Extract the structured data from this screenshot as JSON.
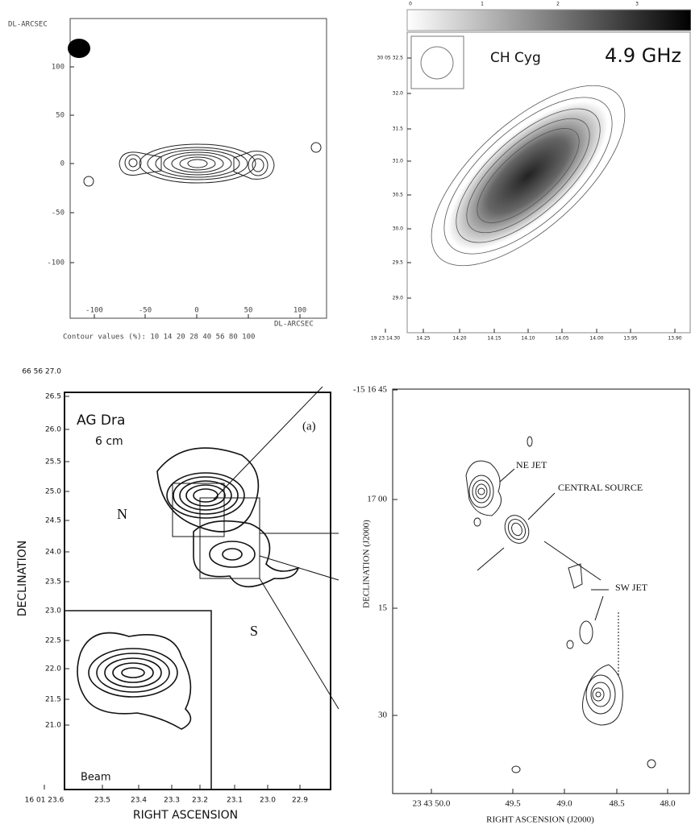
{
  "panels": [
    {
      "corner_label": "DL-ARCSEC",
      "x_axis_label": "DL-ARCSEC",
      "yticks": [
        "100",
        "50",
        "0",
        "-50",
        "-100"
      ],
      "xticks": [
        "-100",
        "-50",
        "0",
        "50",
        "100"
      ],
      "caption": "Contour values (%): 10 14 20 28 40 56 80 100"
    },
    {
      "source": "CH Cyg",
      "frequency": "4.9 GHz",
      "colorbar_ticks": [
        "0",
        "1",
        "2",
        "3"
      ],
      "yticks": [
        "30 05 32.5",
        "32.0",
        "31.5",
        "31.0",
        "30.5",
        "30.0",
        "29.5",
        "29.0"
      ],
      "xticks": [
        "19 23 14.30",
        "14.25",
        "14.20",
        "14.15",
        "14.10",
        "14.05",
        "14.00",
        "13.95",
        "13.90"
      ]
    },
    {
      "source": "AG Dra",
      "wavelength": "6 cm",
      "panel_tag": "(a)",
      "north": "N",
      "south": "S",
      "beam": "Beam",
      "y_axis_label": "DECLINATION",
      "x_axis_label": "RIGHT ASCENSION",
      "yticks": [
        "66 56 27.0",
        "26.5",
        "26.0",
        "25.5",
        "25.0",
        "24.5",
        "24.0",
        "23.5",
        "23.0",
        "22.5",
        "22.0",
        "21.5",
        "21.0"
      ],
      "xticks": [
        "16 01 23.6",
        "23.5",
        "23.4",
        "23.3",
        "23.2",
        "23.1",
        "23.0",
        "22.9"
      ]
    },
    {
      "ne_jet": "NE JET",
      "central_source": "CENTRAL SOURCE",
      "sw_jet": "SW JET",
      "y_axis_label": "DECLINATION (J2000)",
      "x_axis_label": "RIGHT ASCENSION (J2000)",
      "yticks": [
        "-15 16 45",
        "17 00",
        "15",
        "30"
      ],
      "xticks": [
        "23 43 50.0",
        "49.5",
        "49.0",
        "48.5",
        "48.0"
      ]
    }
  ]
}
